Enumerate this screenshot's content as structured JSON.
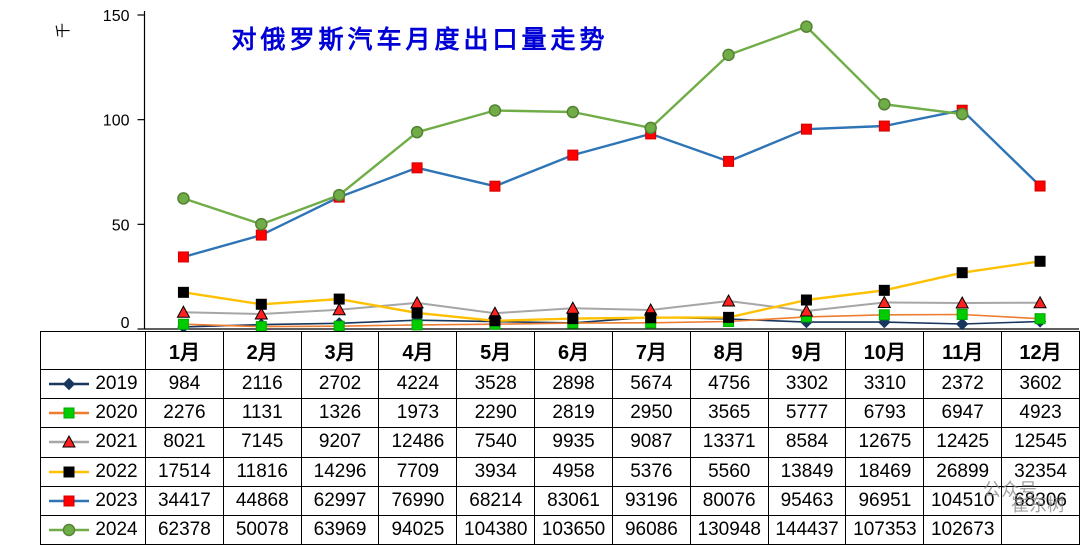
{
  "title": "对俄罗斯汽车月度出口量走势",
  "y_axis_unit": "千",
  "watermark": {
    "line1": "公众号",
    "line2": "崔东树"
  },
  "chart_data": {
    "type": "line",
    "title": "对俄罗斯汽车月度出口量走势",
    "xlabel": "",
    "ylabel": "千",
    "ylim": [
      0,
      150
    ],
    "yticks": [
      0,
      50,
      100,
      150
    ],
    "grid": false,
    "legend_position": "table-left",
    "unit_divisor": 1000,
    "categories": [
      "1月",
      "2月",
      "3月",
      "4月",
      "5月",
      "6月",
      "7月",
      "8月",
      "9月",
      "10月",
      "11月",
      "12月"
    ],
    "series": [
      {
        "name": "2019",
        "line_color": "#17375e",
        "line_width": 1.6,
        "marker": "diamond",
        "marker_fill": "#17375e",
        "marker_edge": "#17375e",
        "values": [
          984,
          2116,
          2702,
          4224,
          3528,
          2898,
          5674,
          4756,
          3302,
          3310,
          2372,
          3602
        ]
      },
      {
        "name": "2020",
        "line_color": "#ed7d31",
        "line_width": 1.6,
        "marker": "square",
        "marker_fill": "#00cc00",
        "marker_edge": "#00aa00",
        "values": [
          2276,
          1131,
          1326,
          1973,
          2290,
          2819,
          2950,
          3565,
          5777,
          6793,
          6947,
          4923
        ]
      },
      {
        "name": "2021",
        "line_color": "#a6a6a6",
        "line_width": 2.0,
        "marker": "triangle",
        "marker_fill": "#ff2020",
        "marker_edge": "#000000",
        "values": [
          8021,
          7145,
          9207,
          12486,
          7540,
          9935,
          9087,
          13371,
          8584,
          12675,
          12425,
          12545
        ]
      },
      {
        "name": "2022",
        "line_color": "#ffc000",
        "line_width": 2.4,
        "marker": "square",
        "marker_fill": "#000000",
        "marker_edge": "#000000",
        "values": [
          17514,
          11816,
          14296,
          7709,
          3934,
          4958,
          5376,
          5560,
          13849,
          18469,
          26899,
          32354
        ]
      },
      {
        "name": "2023",
        "line_color": "#2e75b6",
        "line_width": 2.4,
        "marker": "square",
        "marker_fill": "#ff0000",
        "marker_edge": "#d00000",
        "values": [
          34417,
          44868,
          62997,
          76990,
          68214,
          83061,
          93196,
          80076,
          95463,
          96951,
          104510,
          68306
        ]
      },
      {
        "name": "2024",
        "line_color": "#70ad47",
        "line_width": 2.4,
        "marker": "circle",
        "marker_fill": "#70ad47",
        "marker_edge": "#548235",
        "values": [
          62378,
          50078,
          63969,
          94025,
          104380,
          103650,
          96086,
          130948,
          144437,
          107353,
          102673,
          null
        ]
      }
    ]
  }
}
